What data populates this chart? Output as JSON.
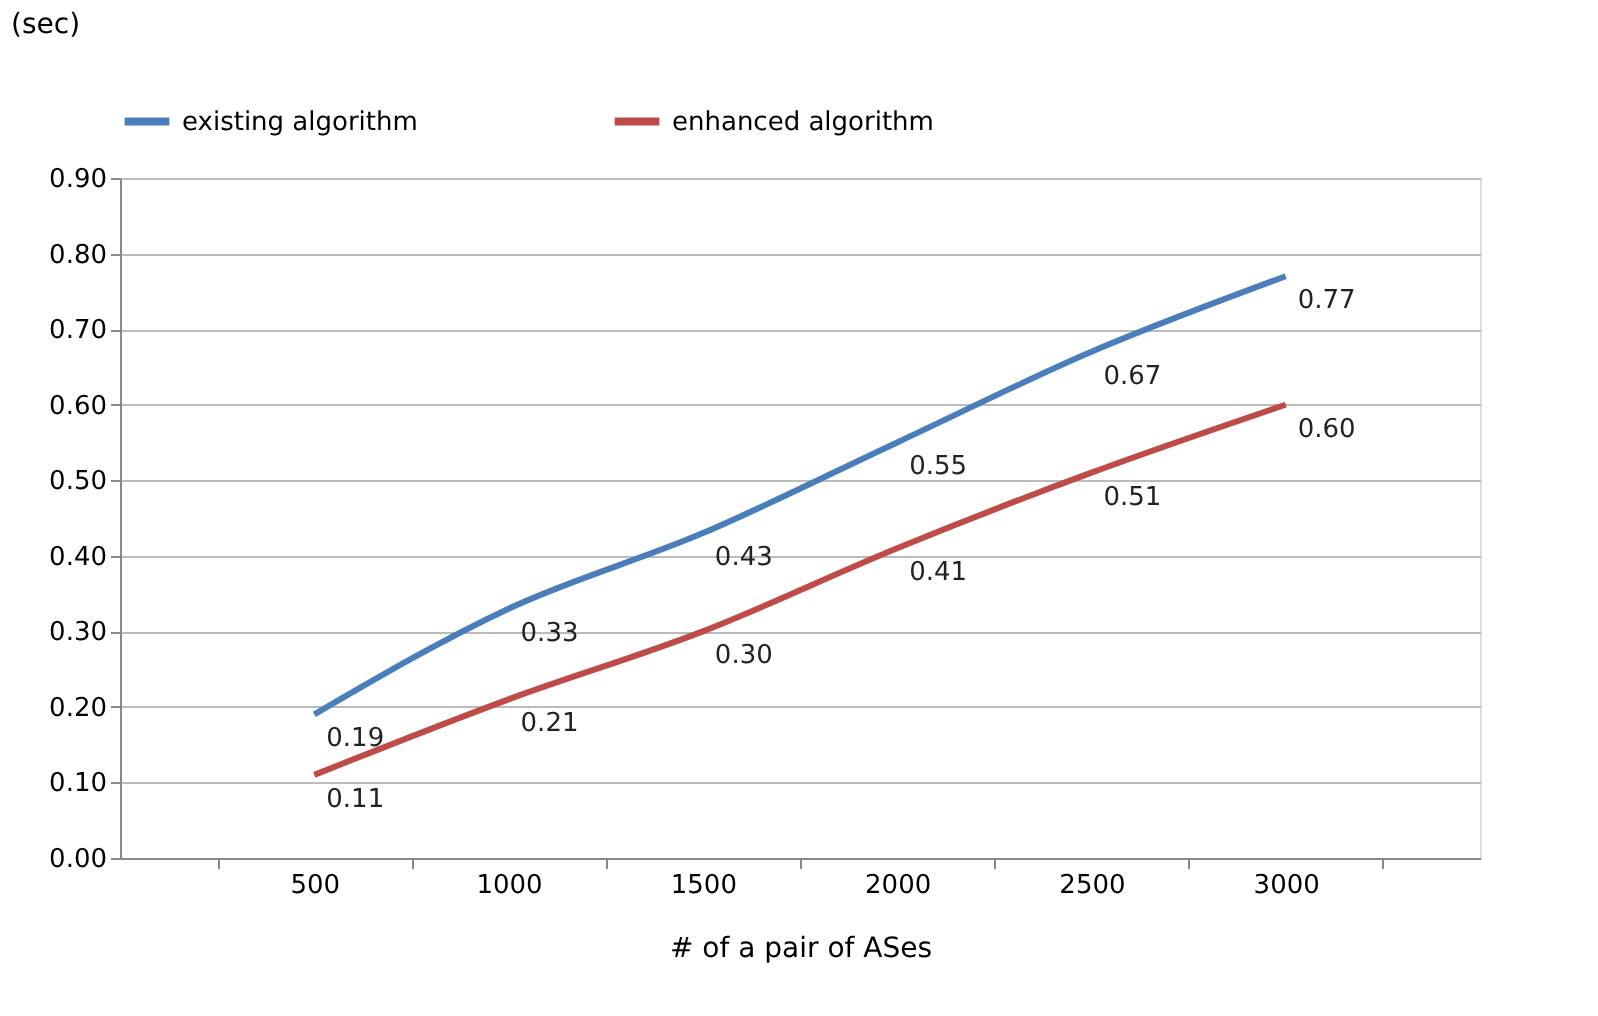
{
  "chart_data": {
    "type": "line",
    "xlabel": "# of a pair of ASes",
    "ylabel": "(sec)",
    "categories": [
      "500",
      "1000",
      "1500",
      "2000",
      "2500",
      "3000"
    ],
    "series": [
      {
        "name": "existing algorithm",
        "color": "#4a7ebb",
        "values": [
          0.19,
          0.33,
          0.43,
          0.55,
          0.67,
          0.77
        ],
        "value_labels": [
          "0.19",
          "0.33",
          "0.43",
          "0.55",
          "0.67",
          "0.77"
        ]
      },
      {
        "name": "enhanced algorithm",
        "color": "#be4b48",
        "values": [
          0.11,
          0.21,
          0.3,
          0.41,
          0.51,
          0.6
        ],
        "value_labels": [
          "0.11",
          "0.21",
          "0.30",
          "0.41",
          "0.51",
          "0.60"
        ]
      }
    ],
    "ylim": [
      0,
      0.9
    ],
    "yticks": [
      {
        "value": 0,
        "label": "0.00"
      },
      {
        "value": 0.1,
        "label": "0.10"
      },
      {
        "value": 0.2,
        "label": "0.20"
      },
      {
        "value": 0.3,
        "label": "0.30"
      },
      {
        "value": 0.4,
        "label": "0.40"
      },
      {
        "value": 0.5,
        "label": "0.50"
      },
      {
        "value": 0.6,
        "label": "0.60"
      },
      {
        "value": 0.7,
        "label": "0.70"
      },
      {
        "value": 0.8,
        "label": "0.80"
      },
      {
        "value": 0.9,
        "label": "0.90"
      }
    ],
    "grid": "y",
    "legend": "top",
    "marker": "none",
    "line_style": "solid"
  }
}
